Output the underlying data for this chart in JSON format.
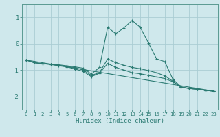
{
  "xlabel": "Humidex (Indice chaleur)",
  "bg_color": "#cfe8ec",
  "grid_color": "#aacdd4",
  "line_color": "#2a7a72",
  "spine_color": "#5a9a92",
  "xlim": [
    -0.5,
    23.5
  ],
  "ylim": [
    -2.5,
    1.5
  ],
  "yticks": [
    -2,
    -1,
    0,
    1
  ],
  "xticks": [
    0,
    1,
    2,
    3,
    4,
    5,
    6,
    7,
    8,
    9,
    10,
    11,
    12,
    13,
    14,
    15,
    16,
    17,
    18,
    19,
    20,
    21,
    22,
    23
  ],
  "series": [
    {
      "x": [
        0,
        1,
        2,
        3,
        4,
        5,
        6,
        7,
        8,
        9,
        10,
        11,
        12,
        13,
        14,
        15,
        16,
        17,
        18,
        19,
        20,
        21,
        22,
        23
      ],
      "y": [
        -0.62,
        -0.72,
        -0.76,
        -0.78,
        -0.8,
        -0.84,
        -0.88,
        -0.93,
        -1.15,
        -0.9,
        0.62,
        0.38,
        0.6,
        0.88,
        0.62,
        0.03,
        -0.58,
        -0.68,
        -1.35,
        -1.63,
        -1.7,
        -1.72,
        -1.77,
        -1.8
      ],
      "marker": "+"
    },
    {
      "x": [
        0,
        1,
        2,
        3,
        4,
        5,
        6,
        7,
        8,
        9,
        10,
        11,
        12,
        13,
        14,
        15,
        16,
        17,
        18,
        19,
        20,
        21,
        22,
        23
      ],
      "y": [
        -0.62,
        -0.72,
        -0.76,
        -0.78,
        -0.82,
        -0.86,
        -0.91,
        -1.0,
        -1.2,
        -1.1,
        -0.58,
        -0.72,
        -0.82,
        -0.9,
        -0.95,
        -1.02,
        -1.1,
        -1.22,
        -1.42,
        -1.65,
        -1.7,
        -1.73,
        -1.77,
        -1.8
      ],
      "marker": "+"
    },
    {
      "x": [
        0,
        1,
        2,
        3,
        4,
        5,
        6,
        7,
        8,
        9,
        10,
        11,
        12,
        13,
        14,
        15,
        16,
        17,
        18,
        19,
        20,
        21,
        22,
        23
      ],
      "y": [
        -0.62,
        -0.72,
        -0.76,
        -0.79,
        -0.84,
        -0.88,
        -0.96,
        -1.05,
        -1.25,
        -1.12,
        -0.75,
        -0.9,
        -1.0,
        -1.1,
        -1.14,
        -1.2,
        -1.26,
        -1.32,
        -1.44,
        -1.65,
        -1.7,
        -1.73,
        -1.77,
        -1.8
      ],
      "marker": "+"
    },
    {
      "x": [
        0,
        23
      ],
      "y": [
        -0.62,
        -1.8
      ],
      "marker": null
    }
  ]
}
